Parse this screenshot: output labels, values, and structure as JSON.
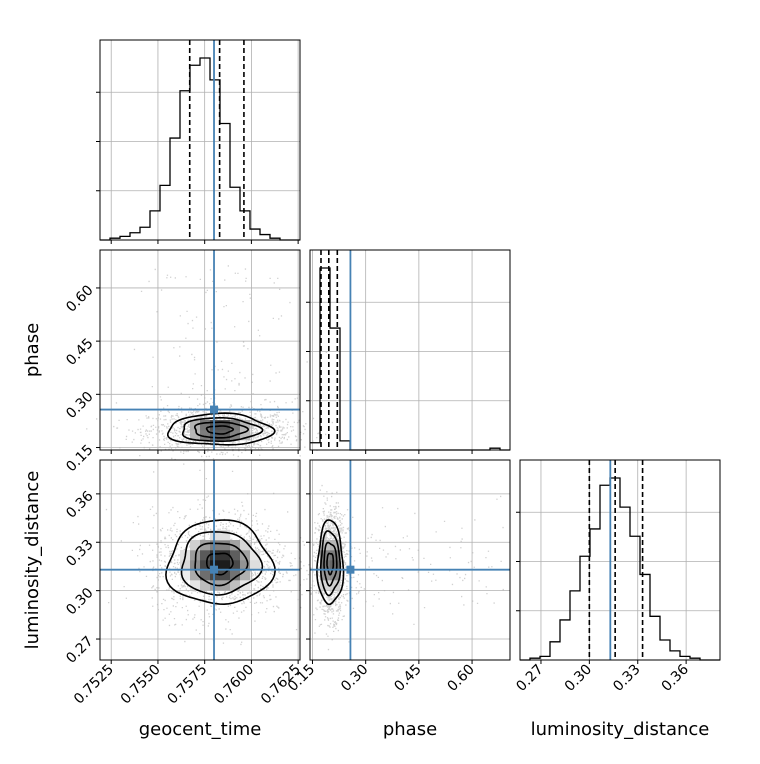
{
  "chart_data": {
    "type": "corner",
    "parameters": [
      {
        "name": "geocent_time",
        "label": "geocent_time",
        "range": [
          0.7519,
          0.7626
        ],
        "ticks": [
          0.7525,
          0.755,
          0.7575,
          0.76,
          0.7625
        ],
        "tick_labels": [
          "0.7525",
          "0.7550",
          "0.7575",
          "0.7600",
          "0.7625"
        ],
        "truth": 0.758,
        "quantiles": [
          0.7567,
          0.7583,
          0.7596
        ]
      },
      {
        "name": "phase",
        "label": "phase",
        "range": [
          0.143,
          0.707
        ],
        "ticks": [
          0.15,
          0.3,
          0.45,
          0.6
        ],
        "tick_labels": [
          "0.15",
          "0.30",
          "0.45",
          "0.60"
        ],
        "truth": 0.257,
        "quantiles": [
          0.174,
          0.196,
          0.22
        ]
      },
      {
        "name": "luminosity_distance",
        "label": "luminosity_distance",
        "range": [
          0.257,
          0.381
        ],
        "ticks": [
          0.27,
          0.3,
          0.33,
          0.36
        ],
        "tick_labels": [
          "0.27",
          "0.30",
          "0.33",
          "0.36"
        ],
        "truth": 0.313,
        "quantiles": [
          0.3,
          0.316,
          0.333
        ]
      }
    ],
    "histograms": {
      "geocent_time": {
        "edges_range": [
          0.7519,
          0.7626
        ],
        "bins": 20,
        "counts": [
          0,
          1,
          2,
          4,
          7,
          16,
          30,
          56,
          82,
          96,
          100,
          88,
          64,
          29,
          16,
          6,
          3,
          1,
          0,
          0
        ]
      },
      "phase": {
        "edges_range": [
          0.143,
          0.707
        ],
        "bins": 20,
        "counts": [
          4,
          100,
          67,
          5,
          0,
          0,
          0,
          0,
          0,
          0,
          0,
          0,
          0,
          0,
          0,
          0,
          0,
          0,
          1,
          0
        ]
      },
      "luminosity_distance": {
        "edges_range": [
          0.257,
          0.381
        ],
        "bins": 20,
        "counts": [
          0,
          1,
          2,
          10,
          22,
          38,
          57,
          72,
          96,
          100,
          84,
          68,
          47,
          24,
          11,
          5,
          2,
          1,
          0,
          0
        ]
      }
    },
    "joint": [
      {
        "x": "geocent_time",
        "y": "phase",
        "center": [
          0.7583,
          0.2
        ],
        "sigma": [
          0.0014,
          0.022
        ],
        "scatter": {
          "std": [
            0.0019,
            0.028
          ],
          "outliers_y_range": [
            0.25,
            0.67
          ]
        }
      },
      {
        "x": "geocent_time",
        "y": "luminosity_distance",
        "center": [
          0.7583,
          0.317
        ],
        "sigma": [
          0.0014,
          0.013
        ],
        "scatter": {
          "std": [
            0.0018,
            0.016
          ]
        }
      },
      {
        "x": "phase",
        "y": "luminosity_distance",
        "center": [
          0.2,
          0.317
        ],
        "sigma": [
          0.018,
          0.013
        ],
        "scatter": {
          "std": [
            0.02,
            0.016
          ],
          "outliers_x_range": [
            0.25,
            0.7
          ]
        }
      }
    ],
    "truth_color": "#4682b4",
    "grid": true
  }
}
